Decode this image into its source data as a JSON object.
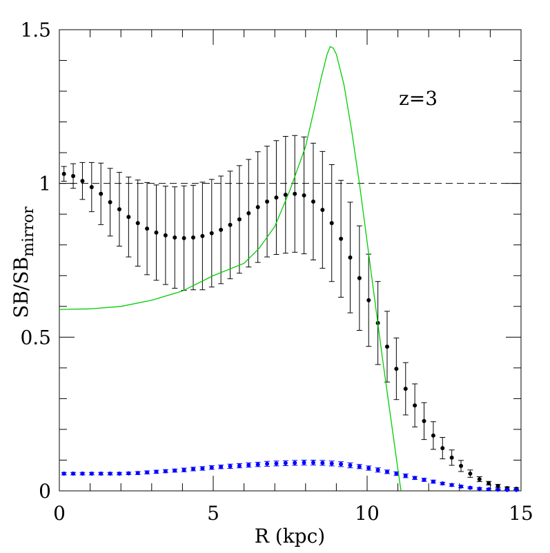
{
  "chart_data": {
    "type": "scatter",
    "xlabel": "R (kpc)",
    "ylabel": {
      "main": "SB/SB",
      "subscript": "mirror"
    },
    "annotation": "z=3",
    "xlim": [
      0,
      15
    ],
    "ylim": [
      0,
      1.5
    ],
    "xticks": [
      0,
      5,
      10,
      15
    ],
    "yticks": [
      0,
      0.5,
      1,
      1.5
    ],
    "xminorticks": [
      1,
      2,
      3,
      4,
      6,
      7,
      8,
      9,
      11,
      12,
      13,
      14
    ],
    "yminorticks": [
      0.1,
      0.2,
      0.3,
      0.4,
      0.6,
      0.7,
      0.8,
      0.9,
      1.1,
      1.2,
      1.3,
      1.4
    ],
    "hline": 1,
    "series": [
      {
        "name": "black",
        "kind": "points",
        "color": "#000000",
        "x": [
          0.15,
          0.45,
          0.75,
          1.05,
          1.35,
          1.65,
          1.95,
          2.25,
          2.55,
          2.85,
          3.15,
          3.45,
          3.75,
          4.05,
          4.35,
          4.65,
          4.95,
          5.25,
          5.55,
          5.85,
          6.15,
          6.45,
          6.75,
          7.05,
          7.35,
          7.65,
          7.95,
          8.25,
          8.55,
          8.85,
          9.15,
          9.45,
          9.75,
          10.05,
          10.35,
          10.65,
          10.95,
          11.25,
          11.55,
          11.85,
          12.15,
          12.45,
          12.75,
          13.05,
          13.35,
          13.65,
          13.95,
          14.25,
          14.55,
          14.85
        ],
        "values": [
          1.031,
          1.024,
          1.008,
          0.988,
          0.966,
          0.939,
          0.916,
          0.891,
          0.871,
          0.853,
          0.84,
          0.831,
          0.824,
          0.822,
          0.824,
          0.829,
          0.838,
          0.849,
          0.865,
          0.883,
          0.903,
          0.923,
          0.941,
          0.954,
          0.963,
          0.966,
          0.961,
          0.941,
          0.914,
          0.871,
          0.82,
          0.759,
          0.692,
          0.62,
          0.546,
          0.469,
          0.397,
          0.332,
          0.278,
          0.227,
          0.18,
          0.139,
          0.108,
          0.081,
          0.056,
          0.038,
          0.025,
          0.016,
          0.009,
          0.007
        ],
        "errors": [
          0.024,
          0.04,
          0.06,
          0.08,
          0.1,
          0.11,
          0.12,
          0.13,
          0.14,
          0.15,
          0.155,
          0.16,
          0.165,
          0.17,
          0.17,
          0.175,
          0.175,
          0.175,
          0.175,
          0.175,
          0.175,
          0.18,
          0.18,
          0.185,
          0.19,
          0.19,
          0.19,
          0.19,
          0.19,
          0.19,
          0.19,
          0.18,
          0.17,
          0.15,
          0.135,
          0.115,
          0.1,
          0.085,
          0.07,
          0.06,
          0.045,
          0.035,
          0.025,
          0.018,
          0.012,
          0.008,
          0.006,
          0.005,
          0.004,
          0.003
        ]
      },
      {
        "name": "blue",
        "kind": "points",
        "color": "#0000ff",
        "x": [
          0.15,
          0.45,
          0.75,
          1.05,
          1.35,
          1.65,
          1.95,
          2.25,
          2.55,
          2.85,
          3.15,
          3.45,
          3.75,
          4.05,
          4.35,
          4.65,
          4.95,
          5.25,
          5.55,
          5.85,
          6.15,
          6.45,
          6.75,
          7.05,
          7.35,
          7.65,
          7.95,
          8.25,
          8.55,
          8.85,
          9.15,
          9.45,
          9.75,
          10.05,
          10.35,
          10.65,
          10.95,
          11.25,
          11.55,
          11.85,
          12.15,
          12.45,
          12.75,
          13.05,
          13.35,
          13.65,
          13.95,
          14.25,
          14.55,
          14.85
        ],
        "values": [
          0.056,
          0.056,
          0.056,
          0.056,
          0.056,
          0.056,
          0.056,
          0.057,
          0.058,
          0.06,
          0.062,
          0.064,
          0.066,
          0.068,
          0.071,
          0.073,
          0.076,
          0.078,
          0.08,
          0.082,
          0.084,
          0.086,
          0.088,
          0.089,
          0.09,
          0.091,
          0.092,
          0.092,
          0.091,
          0.089,
          0.087,
          0.083,
          0.079,
          0.074,
          0.068,
          0.062,
          0.056,
          0.049,
          0.042,
          0.036,
          0.03,
          0.024,
          0.019,
          0.014,
          0.01,
          0.007,
          0.005,
          0.004,
          0.003,
          0.003
        ],
        "errors": [
          0.004,
          0.004,
          0.004,
          0.004,
          0.004,
          0.004,
          0.004,
          0.004,
          0.005,
          0.005,
          0.005,
          0.005,
          0.005,
          0.006,
          0.006,
          0.006,
          0.006,
          0.006,
          0.007,
          0.007,
          0.007,
          0.007,
          0.008,
          0.008,
          0.008,
          0.008,
          0.008,
          0.008,
          0.008,
          0.008,
          0.008,
          0.008,
          0.007,
          0.007,
          0.007,
          0.006,
          0.006,
          0.006,
          0.005,
          0.005,
          0.005,
          0.004,
          0.004,
          0.004,
          0.003,
          0.003,
          0.003,
          0.002,
          0.002,
          0.002
        ]
      },
      {
        "name": "green",
        "kind": "line",
        "color": "#00cc00",
        "x": [
          0,
          1,
          2,
          3,
          4,
          5,
          6,
          6.5,
          7,
          7.5,
          8,
          8.3,
          8.5,
          8.7,
          8.8,
          8.9,
          9,
          9.25,
          9.5,
          9.75,
          10,
          10.25,
          10.5,
          10.75,
          11,
          11.1
        ],
        "values": [
          0.59,
          0.592,
          0.6,
          0.62,
          0.65,
          0.7,
          0.74,
          0.79,
          0.86,
          0.98,
          1.12,
          1.25,
          1.34,
          1.42,
          1.445,
          1.44,
          1.42,
          1.32,
          1.17,
          1.0,
          0.81,
          0.62,
          0.43,
          0.25,
          0.07,
          0.0
        ]
      }
    ]
  }
}
